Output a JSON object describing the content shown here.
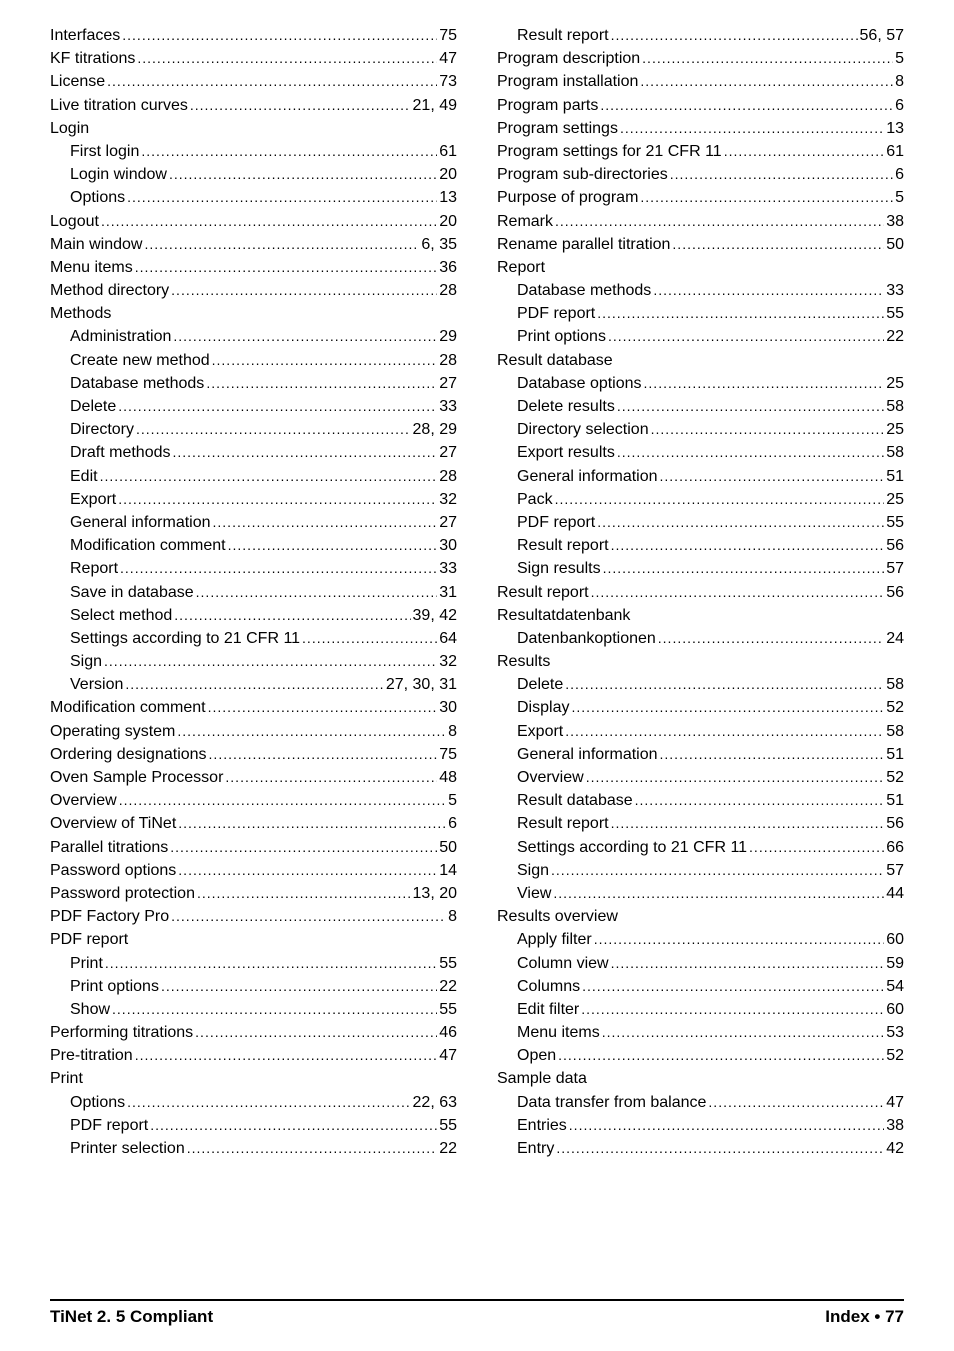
{
  "columns": [
    [
      {
        "label": "Interfaces",
        "page": "75"
      },
      {
        "label": "KF titrations",
        "page": "47"
      },
      {
        "label": "License",
        "page": "73"
      },
      {
        "label": "Live titration curves",
        "page": "21, 49"
      },
      {
        "label": "Login",
        "header": true
      },
      {
        "label": "First login",
        "page": "61",
        "indent": true
      },
      {
        "label": "Login window",
        "page": "20",
        "indent": true
      },
      {
        "label": "Options",
        "page": "13",
        "indent": true
      },
      {
        "label": "Logout",
        "page": "20"
      },
      {
        "label": "Main window",
        "page": "6, 35"
      },
      {
        "label": "Menu items",
        "page": "36"
      },
      {
        "label": "Method directory",
        "page": "28"
      },
      {
        "label": "Methods",
        "header": true
      },
      {
        "label": "Administration",
        "page": "29",
        "indent": true
      },
      {
        "label": "Create new method",
        "page": "28",
        "indent": true
      },
      {
        "label": "Database methods",
        "page": "27",
        "indent": true
      },
      {
        "label": "Delete",
        "page": "33",
        "indent": true
      },
      {
        "label": "Directory",
        "page": "28, 29",
        "indent": true
      },
      {
        "label": "Draft methods",
        "page": "27",
        "indent": true
      },
      {
        "label": "Edit",
        "page": "28",
        "indent": true
      },
      {
        "label": "Export",
        "page": "32",
        "indent": true
      },
      {
        "label": "General information",
        "page": "27",
        "indent": true
      },
      {
        "label": "Modification comment",
        "page": "30",
        "indent": true
      },
      {
        "label": "Report",
        "page": "33",
        "indent": true
      },
      {
        "label": "Save in database",
        "page": "31",
        "indent": true
      },
      {
        "label": "Select method",
        "page": "39, 42",
        "indent": true
      },
      {
        "label": "Settings according to 21 CFR 11",
        "page": "64",
        "indent": true
      },
      {
        "label": "Sign",
        "page": "32",
        "indent": true
      },
      {
        "label": "Version",
        "page": "27, 30, 31",
        "indent": true
      },
      {
        "label": "Modification comment",
        "page": "30"
      },
      {
        "label": "Operating system",
        "page": "8"
      },
      {
        "label": "Ordering designations",
        "page": "75"
      },
      {
        "label": "Oven Sample Processor",
        "page": "48"
      },
      {
        "label": "Overview",
        "page": "5"
      },
      {
        "label": "Overview of TiNet",
        "page": "6"
      },
      {
        "label": "Parallel titrations",
        "page": "50"
      },
      {
        "label": "Password options",
        "page": "14"
      },
      {
        "label": "Password protection",
        "page": "13, 20"
      },
      {
        "label": "PDF Factory Pro",
        "page": "8"
      },
      {
        "label": "PDF report",
        "header": true
      },
      {
        "label": "Print",
        "page": "55",
        "indent": true
      },
      {
        "label": "Print options",
        "page": "22",
        "indent": true
      },
      {
        "label": "Show",
        "page": "55",
        "indent": true
      },
      {
        "label": "Performing titrations",
        "page": "46"
      },
      {
        "label": "Pre-titration",
        "page": "47"
      },
      {
        "label": "Print",
        "header": true
      },
      {
        "label": "Options",
        "page": "22, 63",
        "indent": true
      },
      {
        "label": "PDF report",
        "page": "55",
        "indent": true
      },
      {
        "label": "Printer selection",
        "page": "22",
        "indent": true
      }
    ],
    [
      {
        "label": "Result report",
        "page": "56, 57",
        "indent": true
      },
      {
        "label": "Program description",
        "page": "5"
      },
      {
        "label": "Program installation",
        "page": "8"
      },
      {
        "label": "Program parts",
        "page": "6"
      },
      {
        "label": "Program settings",
        "page": "13"
      },
      {
        "label": "Program settings for 21 CFR 11",
        "page": "61"
      },
      {
        "label": "Program sub-directories",
        "page": "6"
      },
      {
        "label": "Purpose of program",
        "page": "5"
      },
      {
        "label": "Remark",
        "page": "38"
      },
      {
        "label": "Rename parallel titration",
        "page": "50"
      },
      {
        "label": "Report",
        "header": true
      },
      {
        "label": "Database methods",
        "page": "33",
        "indent": true
      },
      {
        "label": "PDF report",
        "page": "55",
        "indent": true
      },
      {
        "label": "Print options",
        "page": "22",
        "indent": true
      },
      {
        "label": "Result database",
        "header": true
      },
      {
        "label": "Database options",
        "page": "25",
        "indent": true
      },
      {
        "label": "Delete results",
        "page": "58",
        "indent": true
      },
      {
        "label": "Directory selection",
        "page": "25",
        "indent": true
      },
      {
        "label": "Export results",
        "page": "58",
        "indent": true
      },
      {
        "label": "General information",
        "page": "51",
        "indent": true
      },
      {
        "label": "Pack",
        "page": "25",
        "indent": true
      },
      {
        "label": "PDF report",
        "page": "55",
        "indent": true
      },
      {
        "label": "Result report",
        "page": "56",
        "indent": true
      },
      {
        "label": "Sign results",
        "page": "57",
        "indent": true
      },
      {
        "label": "Result report",
        "page": "56"
      },
      {
        "label": "Resultatdatenbank",
        "header": true
      },
      {
        "label": "Datenbankoptionen",
        "page": "24",
        "indent": true
      },
      {
        "label": "Results",
        "header": true
      },
      {
        "label": "Delete",
        "page": "58",
        "indent": true
      },
      {
        "label": "Display",
        "page": "52",
        "indent": true
      },
      {
        "label": "Export",
        "page": "58",
        "indent": true
      },
      {
        "label": "General information",
        "page": "51",
        "indent": true
      },
      {
        "label": "Overview",
        "page": "52",
        "indent": true
      },
      {
        "label": "Result database",
        "page": "51",
        "indent": true
      },
      {
        "label": "Result report",
        "page": "56",
        "indent": true
      },
      {
        "label": "Settings according to 21 CFR 11",
        "page": "66",
        "indent": true
      },
      {
        "label": "Sign",
        "page": "57",
        "indent": true
      },
      {
        "label": "View",
        "page": "44",
        "indent": true
      },
      {
        "label": "Results overview",
        "header": true
      },
      {
        "label": "Apply filter",
        "page": "60",
        "indent": true
      },
      {
        "label": "Column view",
        "page": "59",
        "indent": true
      },
      {
        "label": "Columns",
        "page": "54",
        "indent": true
      },
      {
        "label": "Edit filter",
        "page": "60",
        "indent": true
      },
      {
        "label": "Menu items",
        "page": "53",
        "indent": true
      },
      {
        "label": "Open",
        "page": "52",
        "indent": true
      },
      {
        "label": "Sample data",
        "header": true
      },
      {
        "label": "Data transfer from balance",
        "page": "47",
        "indent": true
      },
      {
        "label": "Entries",
        "page": "38",
        "indent": true
      },
      {
        "label": "Entry",
        "page": "42",
        "indent": true
      }
    ]
  ],
  "footer": {
    "left": "TiNet 2. 5 Compliant",
    "right_label": "Index",
    "right_page": "77"
  }
}
